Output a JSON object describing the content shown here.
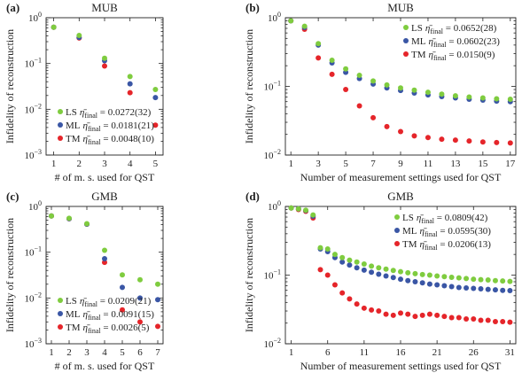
{
  "chart_data": [
    {
      "panel": "(a)",
      "type": "scatter",
      "title": "MUB",
      "xlabel": "# of m. s. used for QST",
      "ylabel": "Infidelity of reconstruction",
      "yscale": "log",
      "xlim": [
        0.7,
        5.3
      ],
      "ylim": [
        0.001,
        1
      ],
      "xticks": [
        "1",
        "2",
        "3",
        "4",
        "5"
      ],
      "yticks": [
        "10^0",
        "10^-1",
        "10^-2",
        "10^-3"
      ],
      "legend_position": "bottom-left",
      "x": [
        1,
        2,
        3,
        4,
        5
      ],
      "series": [
        {
          "name": "LS",
          "final": "0.0272(32)",
          "color": "#7fcc3f",
          "values": [
            0.62,
            0.41,
            0.13,
            0.052,
            0.027
          ]
        },
        {
          "name": "ML",
          "final": "0.0181(21)",
          "color": "#3a56a5",
          "values": [
            0.62,
            0.37,
            0.115,
            0.036,
            0.018
          ]
        },
        {
          "name": "TM",
          "final": "0.0048(10)",
          "color": "#e5252a",
          "values": [
            0.62,
            0.36,
            0.088,
            0.023,
            0.0045
          ]
        }
      ]
    },
    {
      "panel": "(b)",
      "type": "scatter",
      "title": "MUB",
      "xlabel": "Number of measurement settings used for QST",
      "ylabel": "Infidelity of reconstruction",
      "yscale": "log",
      "xlim": [
        0.6,
        17.4
      ],
      "ylim": [
        0.01,
        1
      ],
      "xticks": [
        "1",
        "3",
        "5",
        "7",
        "9",
        "11",
        "13",
        "15",
        "17"
      ],
      "yticks": [
        "10^0",
        "10^-1",
        "10^-2"
      ],
      "legend_position": "top-right",
      "x": [
        1,
        2,
        3,
        4,
        5,
        6,
        7,
        8,
        9,
        10,
        11,
        12,
        13,
        14,
        15,
        16,
        17
      ],
      "series": [
        {
          "name": "LS",
          "final": "0.0652(28)",
          "color": "#7fcc3f",
          "values": [
            0.9,
            0.75,
            0.42,
            0.24,
            0.18,
            0.145,
            0.12,
            0.105,
            0.095,
            0.088,
            0.082,
            0.077,
            0.073,
            0.07,
            0.068,
            0.066,
            0.065
          ]
        },
        {
          "name": "ML",
          "final": "0.0602(23)",
          "color": "#3a56a5",
          "values": [
            0.9,
            0.72,
            0.4,
            0.22,
            0.16,
            0.13,
            0.108,
            0.095,
            0.087,
            0.08,
            0.075,
            0.071,
            0.068,
            0.065,
            0.063,
            0.061,
            0.06
          ]
        },
        {
          "name": "TM",
          "final": "0.0150(9)",
          "color": "#e5252a",
          "values": [
            0.9,
            0.68,
            0.26,
            0.15,
            0.09,
            0.052,
            0.035,
            0.026,
            0.022,
            0.019,
            0.018,
            0.017,
            0.0165,
            0.016,
            0.0155,
            0.0152,
            0.015
          ]
        }
      ]
    },
    {
      "panel": "(c)",
      "type": "scatter",
      "title": "GMB",
      "xlabel": "# of m. s. used for QST",
      "ylabel": "Infidelity of reconstruction",
      "yscale": "log",
      "xlim": [
        0.7,
        7.3
      ],
      "ylim": [
        0.001,
        1
      ],
      "xticks": [
        "1",
        "2",
        "3",
        "4",
        "5",
        "6",
        "7"
      ],
      "yticks": [
        "10^0",
        "10^-1",
        "10^-2",
        "10^-3"
      ],
      "legend_position": "bottom-left",
      "x": [
        1,
        2,
        3,
        4,
        5,
        6,
        7
      ],
      "series": [
        {
          "name": "LS",
          "final": "0.0209(21)",
          "color": "#7fcc3f",
          "values": [
            0.62,
            0.55,
            0.42,
            0.11,
            0.032,
            0.025,
            0.02
          ]
        },
        {
          "name": "ML",
          "final": "0.0091(15)",
          "color": "#3a56a5",
          "values": [
            0.62,
            0.54,
            0.41,
            0.072,
            0.017,
            0.01,
            0.0092
          ]
        },
        {
          "name": "TM",
          "final": "0.0026(5)",
          "color": "#e5252a",
          "values": [
            0.62,
            0.54,
            0.41,
            0.06,
            0.0055,
            0.003,
            0.0024
          ]
        }
      ]
    },
    {
      "panel": "(d)",
      "type": "scatter",
      "title": "GMB",
      "xlabel": "Number of measurement settings used for QST",
      "ylabel": "Infidelity of reconstruction",
      "yscale": "log",
      "xlim": [
        0.2,
        31.8
      ],
      "ylim": [
        0.01,
        1
      ],
      "xticks": [
        "1",
        "6",
        "11",
        "16",
        "21",
        "26",
        "31"
      ],
      "yticks": [
        "10^0",
        "10^-1",
        "10^-2"
      ],
      "legend_position": "top-right",
      "x": [
        1,
        2,
        3,
        4,
        5,
        6,
        7,
        8,
        9,
        10,
        11,
        12,
        13,
        14,
        15,
        16,
        17,
        18,
        19,
        20,
        21,
        22,
        23,
        24,
        25,
        26,
        27,
        28,
        29,
        30,
        31
      ],
      "series": [
        {
          "name": "LS",
          "final": "0.0809(42)",
          "color": "#7fcc3f",
          "values": [
            0.95,
            0.92,
            0.88,
            0.75,
            0.25,
            0.24,
            0.2,
            0.18,
            0.165,
            0.155,
            0.145,
            0.135,
            0.128,
            0.122,
            0.117,
            0.112,
            0.108,
            0.105,
            0.102,
            0.1,
            0.097,
            0.095,
            0.093,
            0.091,
            0.089,
            0.087,
            0.086,
            0.085,
            0.083,
            0.082,
            0.081
          ]
        },
        {
          "name": "ML",
          "final": "0.0595(30)",
          "color": "#3a56a5",
          "values": [
            0.95,
            0.92,
            0.87,
            0.72,
            0.24,
            0.22,
            0.18,
            0.155,
            0.14,
            0.128,
            0.118,
            0.11,
            0.103,
            0.097,
            0.092,
            0.087,
            0.083,
            0.08,
            0.077,
            0.074,
            0.072,
            0.07,
            0.068,
            0.066,
            0.065,
            0.064,
            0.063,
            0.062,
            0.061,
            0.06,
            0.0595
          ]
        },
        {
          "name": "TM",
          "final": "0.0206(13)",
          "color": "#e5252a",
          "values": [
            0.95,
            0.9,
            0.85,
            0.68,
            0.12,
            0.1,
            0.072,
            0.055,
            0.045,
            0.038,
            0.033,
            0.031,
            0.03,
            0.027,
            0.026,
            0.028,
            0.027,
            0.025,
            0.026,
            0.027,
            0.026,
            0.025,
            0.024,
            0.024,
            0.023,
            0.023,
            0.022,
            0.022,
            0.021,
            0.021,
            0.0206
          ]
        }
      ]
    }
  ]
}
